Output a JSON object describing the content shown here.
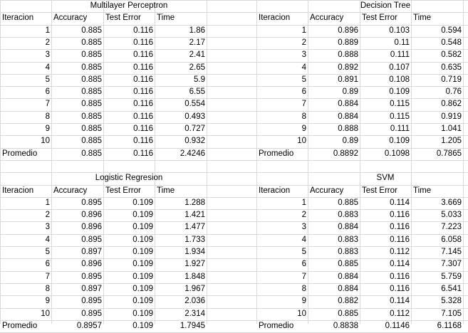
{
  "tables": [
    {
      "title": "Multilayer Perceptron",
      "headers": [
        "Iteracion",
        "Accuracy",
        "Test Error",
        "Time"
      ],
      "rows": [
        [
          "1",
          "0.885",
          "0.116",
          "1.86"
        ],
        [
          "2",
          "0.885",
          "0.116",
          "2.17"
        ],
        [
          "3",
          "0.885",
          "0.116",
          "2.41"
        ],
        [
          "4",
          "0.885",
          "0.116",
          "2.65"
        ],
        [
          "5",
          "0.885",
          "0.116",
          "5.9"
        ],
        [
          "6",
          "0.885",
          "0.116",
          "6.55"
        ],
        [
          "7",
          "0.885",
          "0.116",
          "0.554"
        ],
        [
          "8",
          "0.885",
          "0.116",
          "0.493"
        ],
        [
          "9",
          "0.885",
          "0.116",
          "0.727"
        ],
        [
          "10",
          "0.885",
          "0.116",
          "0.932"
        ]
      ],
      "summary": [
        "Promedio",
        "0.885",
        "0.116",
        "2.4246"
      ]
    },
    {
      "title": "Decision Tree",
      "headers": [
        "Iteracion",
        "Accuracy",
        "Test Error",
        "Time"
      ],
      "rows": [
        [
          "1",
          "0.896",
          "0.103",
          "0.594"
        ],
        [
          "2",
          "0.889",
          "0.11",
          "0.548"
        ],
        [
          "3",
          "0.888",
          "0.111",
          "0.582"
        ],
        [
          "4",
          "0.892",
          "0.107",
          "0.635"
        ],
        [
          "5",
          "0.891",
          "0.108",
          "0.719"
        ],
        [
          "6",
          "0.89",
          "0.109",
          "0.76"
        ],
        [
          "7",
          "0.884",
          "0.115",
          "0.862"
        ],
        [
          "8",
          "0.884",
          "0.115",
          "0.919"
        ],
        [
          "9",
          "0.888",
          "0.111",
          "1.041"
        ],
        [
          "10",
          "0.89",
          "0.109",
          "1.205"
        ]
      ],
      "summary": [
        "Promedio",
        "0.8892",
        "0.1098",
        "0.7865"
      ]
    },
    {
      "title": "Logistic Regresion",
      "headers": [
        "Iteracion",
        "Accuracy",
        "Test Error",
        "Time"
      ],
      "rows": [
        [
          "1",
          "0.895",
          "0.109",
          "1.288"
        ],
        [
          "2",
          "0.896",
          "0.109",
          "1.421"
        ],
        [
          "3",
          "0.896",
          "0.109",
          "1.477"
        ],
        [
          "4",
          "0.895",
          "0.109",
          "1.733"
        ],
        [
          "5",
          "0.897",
          "0.109",
          "1.934"
        ],
        [
          "6",
          "0.896",
          "0.109",
          "1.927"
        ],
        [
          "7",
          "0.895",
          "0.109",
          "1.848"
        ],
        [
          "8",
          "0.897",
          "0.109",
          "1.967"
        ],
        [
          "9",
          "0.895",
          "0.109",
          "2.036"
        ],
        [
          "10",
          "0.895",
          "0.109",
          "2.314"
        ]
      ],
      "summary": [
        "Promedio",
        "0.8957",
        "0.109",
        "1.7945"
      ]
    },
    {
      "title": "SVM",
      "headers": [
        "Iteracion",
        "Accuracy",
        "Test Error",
        "Time"
      ],
      "rows": [
        [
          "1",
          "0.885",
          "0.114",
          "3.669"
        ],
        [
          "2",
          "0.883",
          "0.116",
          "5.033"
        ],
        [
          "3",
          "0.884",
          "0.116",
          "7.223"
        ],
        [
          "4",
          "0.883",
          "0.116",
          "6.058"
        ],
        [
          "5",
          "0.883",
          "0.112",
          "7.145"
        ],
        [
          "6",
          "0.885",
          "0.114",
          "7.307"
        ],
        [
          "7",
          "0.884",
          "0.116",
          "5.759"
        ],
        [
          "8",
          "0.884",
          "0.116",
          "6.541"
        ],
        [
          "9",
          "0.882",
          "0.114",
          "5.328"
        ],
        [
          "10",
          "0.885",
          "0.112",
          "7.105"
        ]
      ],
      "summary": [
        "Promedio",
        "0.8838",
        "0.1146",
        "6.1168"
      ]
    }
  ]
}
